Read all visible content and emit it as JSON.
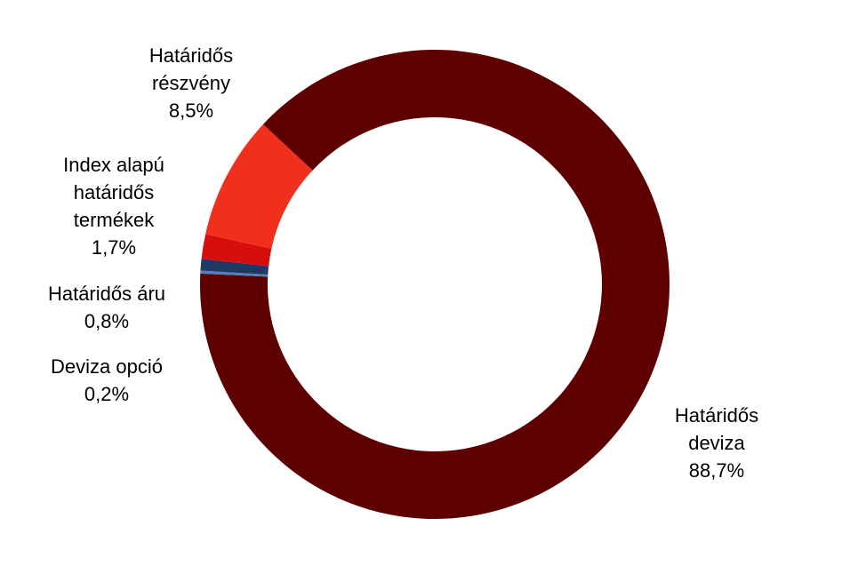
{
  "chart_data": {
    "type": "donut",
    "categories": [
      "Határidős deviza",
      "Deviza opció",
      "Határidős áru",
      "Index alapú határidős termékek",
      "Határidős részvény"
    ],
    "values": [
      88.7,
      0.2,
      0.8,
      1.7,
      8.5
    ],
    "value_labels": [
      "88,7%",
      "0,2%",
      "0,8%",
      "1,7%",
      "8,5%"
    ],
    "colors": [
      "#5e0000",
      "#4f81bd",
      "#1f3864",
      "#d80e0e",
      "#f0301c"
    ]
  }
}
